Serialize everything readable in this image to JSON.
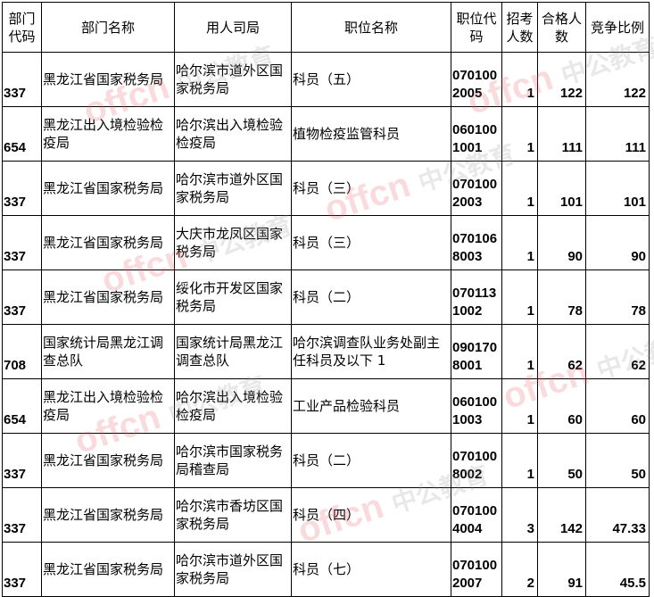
{
  "header": [
    "部门代码",
    "部门名称",
    "用人司局",
    "职位名称",
    "职位代码",
    "招考人数",
    "合格人数",
    "竞争比例"
  ],
  "rows": [
    [
      "337",
      "黑龙江省国家税务局",
      "哈尔滨市道外区国家税务局",
      "科员（五）",
      "0701002005",
      "1",
      "122",
      "122"
    ],
    [
      "654",
      "黑龙江出入境检验检疫局",
      "哈尔滨出入境检验检疫局",
      "植物检疫监管科员",
      "0601001001",
      "1",
      "111",
      "111"
    ],
    [
      "337",
      "黑龙江省国家税务局",
      "哈尔滨市道外区国家税务局",
      "科员（三）",
      "0701002003",
      "1",
      "101",
      "101"
    ],
    [
      "337",
      "黑龙江省国家税务局",
      "大庆市龙凤区国家税务局",
      "科员（三）",
      "0701068003",
      "1",
      "90",
      "90"
    ],
    [
      "337",
      "黑龙江省国家税务局",
      "绥化市开发区国家税务局",
      "科员（二）",
      "0701131002",
      "1",
      "78",
      "78"
    ],
    [
      "708",
      "国家统计局黑龙江调查总队",
      "国家统计局黑龙江调查总队",
      "哈尔滨调查队业务处副主任科员及以下 1",
      "0901708001",
      "1",
      "62",
      "62"
    ],
    [
      "654",
      "黑龙江出入境检验检疫局",
      "哈尔滨出入境检验检疫局",
      "工业产品检验科员",
      "0601001003",
      "1",
      "60",
      "60"
    ],
    [
      "337",
      "黑龙江省国家税务局",
      "哈尔滨市国家税务局稽查局",
      "科员（二）",
      "0701008002",
      "1",
      "50",
      "50"
    ],
    [
      "337",
      "黑龙江省国家税务局",
      "哈尔滨市香坊区国家税务局",
      "科员（四）",
      "0701004004",
      "3",
      "142",
      "47.33"
    ],
    [
      "337",
      "黑龙江省国家税务局",
      "哈尔滨市道外区国家税务局",
      "科员（七）",
      "0701002007",
      "2",
      "91",
      "45.5"
    ]
  ],
  "watermark": {
    "brand": "offcn",
    "cn": "中公教育"
  }
}
